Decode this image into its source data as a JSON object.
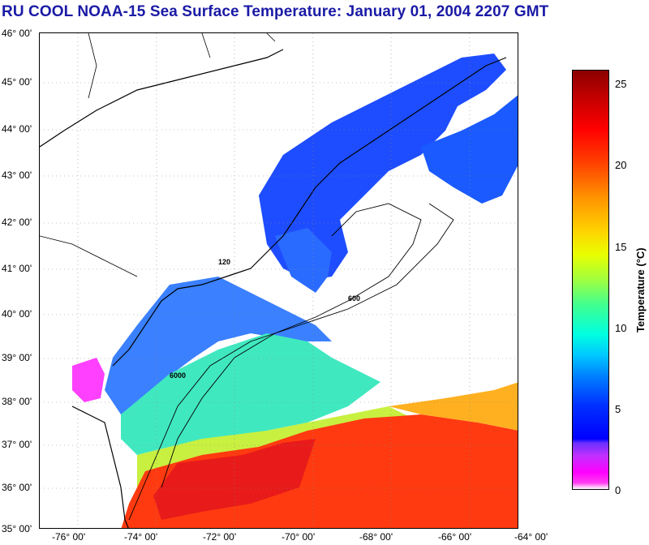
{
  "title": "RU COOL  NOAA-15  Sea Surface Temperature:  January 01, 2004 2207 GMT",
  "map": {
    "lat_labels": [
      "46° 00'",
      "45° 00'",
      "44° 00'",
      "43° 00'",
      "42° 00'",
      "41° 00'",
      "40° 00'",
      "39° 00'",
      "38° 00'",
      "37° 00'",
      "36° 00'",
      "35° 00'"
    ],
    "lon_labels": [
      "-76° 00'",
      "-74° 00'",
      "-72° 00'",
      "-70° 00'",
      "-68° 00'",
      "-66° 00'",
      "-64° 00'"
    ],
    "contour_labels": [
      "600",
      "6000",
      "120"
    ]
  },
  "colorbar": {
    "label": "Temperature (°C)",
    "ticks": [
      "25",
      "20",
      "15",
      "10",
      "5",
      "0"
    ],
    "colors": {
      "cold": "#0000ff",
      "warm": "#ff0000",
      "land": "#ffffff"
    }
  }
}
